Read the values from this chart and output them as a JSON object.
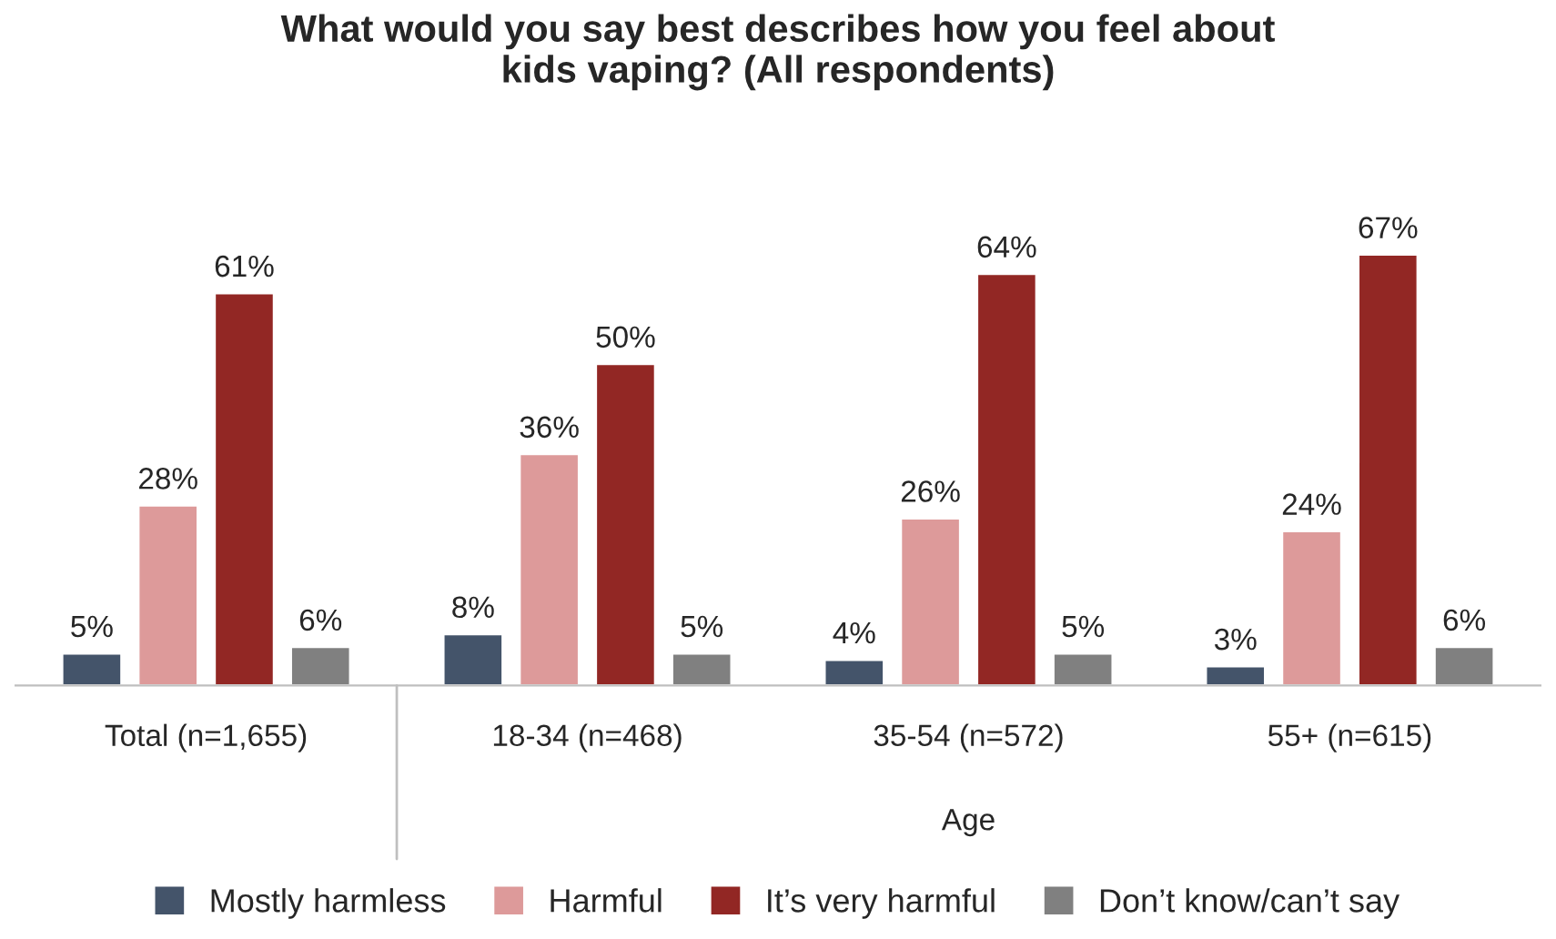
{
  "chart_data": {
    "type": "bar",
    "title": "What would you say best describes how you feel about\nkids vaping? (All respondents)",
    "categories": [
      "Total (n=1,655)",
      "18-34 (n=468)",
      "35-54 (n=572)",
      "55+ (n=615)"
    ],
    "series": [
      {
        "name": "Mostly harmless",
        "color": "#44546a",
        "values": [
          5,
          8,
          4,
          3
        ],
        "value_labels": [
          "5%",
          "8%",
          "4%",
          "3%"
        ]
      },
      {
        "name": "Harmful",
        "color": "#dd9a9a",
        "values": [
          28,
          36,
          26,
          24
        ],
        "value_labels": [
          "28%",
          "36%",
          "26%",
          "24%"
        ]
      },
      {
        "name": "It’s very harmful",
        "color": "#922724",
        "values": [
          61,
          50,
          64,
          67
        ],
        "value_labels": [
          "61%",
          "50%",
          "64%",
          "67%"
        ]
      },
      {
        "name": "Don’t know/can’t say",
        "color": "#808080",
        "values": [
          6,
          5,
          5,
          6
        ],
        "value_labels": [
          "6%",
          "5%",
          "5%",
          "6%"
        ]
      }
    ],
    "annotations": [
      "Age"
    ],
    "legend": "bottom"
  }
}
